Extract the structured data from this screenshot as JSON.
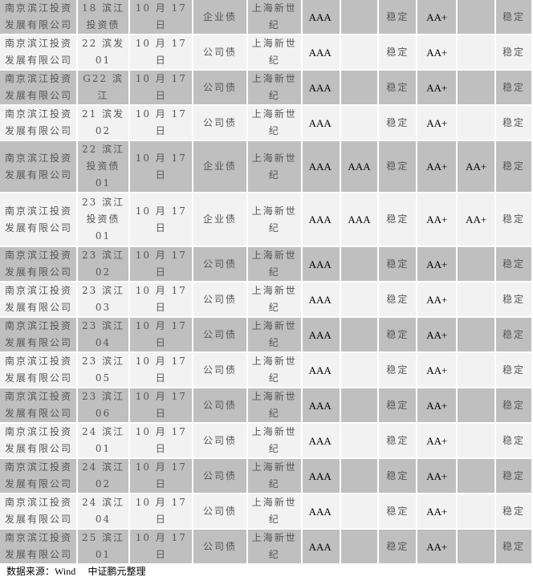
{
  "rows": [
    [
      "南京滨江投资\n发展有限公司",
      "18 滨江\n投资债",
      "10 月 17 日",
      "企业债",
      "上海新世\n纪",
      "AAA",
      "",
      "稳定",
      "AA+",
      "",
      "稳定"
    ],
    [
      "南京滨江投资\n发展有限公司",
      "22 滨发\n01",
      "10 月 17 日",
      "公司债",
      "上海新世\n纪",
      "AAA",
      "",
      "稳定",
      "AA+",
      "",
      "稳定"
    ],
    [
      "南京滨江投资\n发展有限公司",
      "G22 滨江",
      "10 月 17 日",
      "公司债",
      "上海新世\n纪",
      "AAA",
      "",
      "稳定",
      "AA+",
      "",
      "稳定"
    ],
    [
      "南京滨江投资\n发展有限公司",
      "21 滨发\n02",
      "10 月 17 日",
      "公司债",
      "上海新世\n纪",
      "AAA",
      "",
      "稳定",
      "AA+",
      "",
      "稳定"
    ],
    [
      "南京滨江投资\n发展有限公司",
      "22 滨江\n投资债\n01",
      "10 月 17 日",
      "企业债",
      "上海新世\n纪",
      "AAA",
      "AAA",
      "稳定",
      "AA+",
      "AA+",
      "稳定"
    ],
    [
      "南京滨江投资\n发展有限公司",
      "23 滨江\n投资债\n01",
      "10 月 17 日",
      "企业债",
      "上海新世\n纪",
      "AAA",
      "AAA",
      "稳定",
      "AA+",
      "AA+",
      "稳定"
    ],
    [
      "南京滨江投资\n发展有限公司",
      "23 滨江\n02",
      "10 月 17 日",
      "公司债",
      "上海新世\n纪",
      "AAA",
      "",
      "稳定",
      "AA+",
      "",
      "稳定"
    ],
    [
      "南京滨江投资\n发展有限公司",
      "23 滨江\n03",
      "10 月 17 日",
      "公司债",
      "上海新世\n纪",
      "AAA",
      "",
      "稳定",
      "AA+",
      "",
      "稳定"
    ],
    [
      "南京滨江投资\n发展有限公司",
      "23 滨江\n04",
      "10 月 17 日",
      "公司债",
      "上海新世\n纪",
      "AAA",
      "",
      "稳定",
      "AA+",
      "",
      "稳定"
    ],
    [
      "南京滨江投资\n发展有限公司",
      "23 滨江\n05",
      "10 月 17 日",
      "公司债",
      "上海新世\n纪",
      "AAA",
      "",
      "稳定",
      "AA+",
      "",
      "稳定"
    ],
    [
      "南京滨江投资\n发展有限公司",
      "23 滨江\n06",
      "10 月 17 日",
      "公司债",
      "上海新世\n纪",
      "AAA",
      "",
      "稳定",
      "AA+",
      "",
      "稳定"
    ],
    [
      "南京滨江投资\n发展有限公司",
      "24 滨江\n01",
      "10 月 17 日",
      "公司债",
      "上海新世\n纪",
      "AAA",
      "",
      "稳定",
      "AA+",
      "",
      "稳定"
    ],
    [
      "南京滨江投资\n发展有限公司",
      "24 滨江\n02",
      "10 月 17 日",
      "公司债",
      "上海新世\n纪",
      "AAA",
      "",
      "稳定",
      "AA+",
      "",
      "稳定"
    ],
    [
      "南京滨江投资\n发展有限公司",
      "24 滨江\n04",
      "10 月 17 日",
      "公司债",
      "上海新世\n纪",
      "AAA",
      "",
      "稳定",
      "AA+",
      "",
      "稳定"
    ],
    [
      "南京滨江投资\n发展有限公司",
      "25 滨江\n01",
      "10 月 17 日",
      "公司债",
      "上海新世\n纪",
      "AAA",
      "",
      "稳定",
      "AA+",
      "",
      "稳定"
    ]
  ],
  "footer": {
    "label": "数据来源：",
    "source": "Wind",
    "suffix": "中证鹏元整理"
  },
  "colors": {
    "row_dark": "#bfbfbf",
    "row_light": "#f2f2f2"
  }
}
